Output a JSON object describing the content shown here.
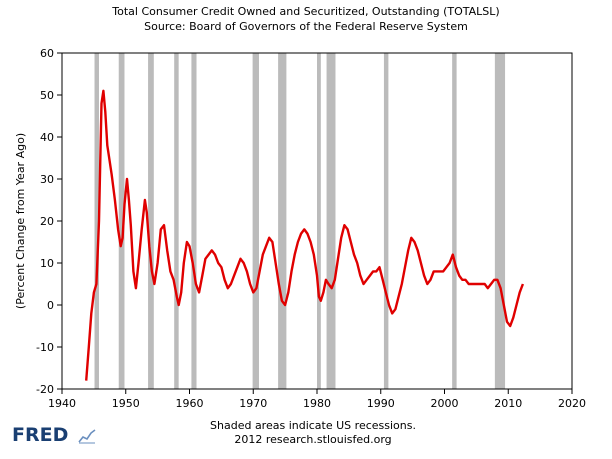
{
  "chart_data": {
    "type": "line",
    "title": "Total Consumer Credit Owned and Securitized, Outstanding (TOTALSL)",
    "subtitle": "Source: Board of Governors of the Federal Reserve System",
    "ylabel": "(Percent Change from Year Ago)",
    "xlabel": "",
    "xlim": [
      1940,
      2020
    ],
    "ylim": [
      -20,
      60
    ],
    "x_ticks": [
      1940,
      1950,
      1960,
      1970,
      1980,
      1990,
      2000,
      2010,
      2020
    ],
    "y_ticks": [
      -20,
      -10,
      0,
      10,
      20,
      30,
      40,
      50,
      60
    ],
    "grid": false,
    "line_color": "#e00000",
    "recession_color": "#bbbbbb",
    "recessions": [
      [
        1945.1,
        1945.8
      ],
      [
        1948.9,
        1949.8
      ],
      [
        1953.5,
        1954.4
      ],
      [
        1957.6,
        1958.3
      ],
      [
        1960.3,
        1961.1
      ],
      [
        1969.9,
        1970.9
      ],
      [
        1973.9,
        1975.2
      ],
      [
        1980.0,
        1980.6
      ],
      [
        1981.5,
        1982.9
      ],
      [
        1990.5,
        1991.2
      ],
      [
        2001.2,
        2001.9
      ],
      [
        2007.9,
        2009.5
      ]
    ],
    "series": [
      {
        "name": "TOTALSL",
        "x": [
          1943.8,
          1944.2,
          1944.6,
          1945.0,
          1945.4,
          1945.8,
          1946.2,
          1946.5,
          1946.8,
          1947.1,
          1947.4,
          1947.8,
          1948.3,
          1948.8,
          1949.2,
          1949.5,
          1949.8,
          1950.2,
          1950.5,
          1950.8,
          1951.2,
          1951.6,
          1952.0,
          1952.5,
          1953.0,
          1953.3,
          1953.7,
          1954.1,
          1954.5,
          1955.0,
          1955.5,
          1956.0,
          1956.5,
          1957.0,
          1957.5,
          1958.0,
          1958.3,
          1958.7,
          1959.1,
          1959.6,
          1960.0,
          1960.5,
          1961.0,
          1961.5,
          1962.0,
          1962.5,
          1963.0,
          1963.5,
          1964.0,
          1964.5,
          1965.0,
          1965.5,
          1966.0,
          1966.5,
          1967.0,
          1967.5,
          1968.0,
          1968.5,
          1969.0,
          1969.5,
          1970.0,
          1970.5,
          1971.0,
          1971.5,
          1972.0,
          1972.5,
          1973.0,
          1973.5,
          1974.0,
          1974.5,
          1975.0,
          1975.5,
          1976.0,
          1976.5,
          1977.0,
          1977.5,
          1978.0,
          1978.5,
          1979.0,
          1979.5,
          1980.0,
          1980.3,
          1980.6,
          1981.0,
          1981.4,
          1981.8,
          1982.3,
          1982.8,
          1983.3,
          1983.8,
          1984.3,
          1984.8,
          1985.3,
          1985.8,
          1986.3,
          1986.8,
          1987.3,
          1987.8,
          1988.3,
          1988.8,
          1989.3,
          1989.8,
          1990.3,
          1990.8,
          1991.3,
          1991.8,
          1992.3,
          1992.8,
          1993.3,
          1993.8,
          1994.3,
          1994.8,
          1995.3,
          1995.8,
          1996.3,
          1996.8,
          1997.3,
          1997.8,
          1998.3,
          1998.8,
          1999.3,
          1999.8,
          2000.3,
          2000.8,
          2001.3,
          2001.8,
          2002.3,
          2002.8,
          2003.3,
          2003.8,
          2004.3,
          2004.8,
          2005.3,
          2005.8,
          2006.3,
          2006.8,
          2007.3,
          2007.8,
          2008.3,
          2008.8,
          2009.3,
          2009.8,
          2010.3,
          2010.8,
          2011.3,
          2011.8,
          2012.3
        ],
        "values": [
          -18,
          -10,
          -2,
          3,
          5,
          20,
          48,
          51,
          46,
          38,
          35,
          31,
          25,
          18,
          14,
          16,
          24,
          30,
          25,
          19,
          8,
          4,
          10,
          18,
          25,
          22,
          14,
          8,
          5,
          10,
          18,
          19,
          13,
          8,
          6,
          2,
          0,
          3,
          10,
          15,
          14,
          10,
          5,
          3,
          7,
          11,
          12,
          13,
          12,
          10,
          9,
          6,
          4,
          5,
          7,
          9,
          11,
          10,
          8,
          5,
          3,
          4,
          8,
          12,
          14,
          16,
          15,
          10,
          5,
          1,
          0,
          3,
          8,
          12,
          15,
          17,
          18,
          17,
          15,
          12,
          7,
          2,
          1,
          3,
          6,
          5,
          4,
          6,
          11,
          16,
          19,
          18,
          15,
          12,
          10,
          7,
          5,
          6,
          7,
          8,
          8,
          9,
          6,
          3,
          0,
          -2,
          -1,
          2,
          5,
          9,
          13,
          16,
          15,
          13,
          10,
          7,
          5,
          6,
          8,
          8,
          8,
          8,
          9,
          10,
          12,
          9,
          7,
          6,
          6,
          5,
          5,
          5,
          5,
          5,
          5,
          4,
          5,
          6,
          6,
          4,
          0,
          -4,
          -5,
          -3,
          0,
          3,
          5
        ]
      }
    ],
    "footer_line1": "Shaded areas indicate US recessions.",
    "footer_line2": "2012 research.stlouisfed.org"
  },
  "branding": {
    "logo_text": "FRED",
    "logo_mark": "chart-icon"
  }
}
